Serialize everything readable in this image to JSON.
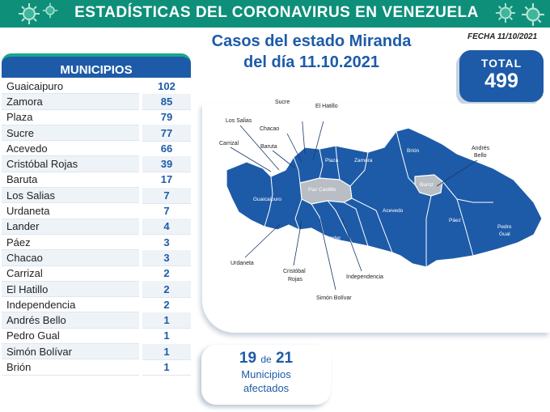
{
  "header": {
    "title": "ESTADÍSTICAS DEL CORONAVIRUS EN VENEZUELA"
  },
  "subtitle": {
    "line1": "Casos del estado Miranda",
    "line2": "del día 11.10.2021"
  },
  "fecha": "FECHA 11/10/2021",
  "total": {
    "label": "TOTAL",
    "value": "499"
  },
  "municipios": {
    "header": "MUNICIPIOS",
    "rows": [
      {
        "name": "Guaicaipuro",
        "value": "102"
      },
      {
        "name": "Zamora",
        "value": "85"
      },
      {
        "name": "Plaza",
        "value": "79"
      },
      {
        "name": "Sucre",
        "value": "77"
      },
      {
        "name": "Acevedo",
        "value": "66"
      },
      {
        "name": "Cristóbal Rojas",
        "value": "39"
      },
      {
        "name": "Baruta",
        "value": "17"
      },
      {
        "name": "Los Salias",
        "value": "7"
      },
      {
        "name": "Urdaneta",
        "value": "7"
      },
      {
        "name": "Lander",
        "value": "4"
      },
      {
        "name": "Páez",
        "value": "3"
      },
      {
        "name": "Chacao",
        "value": "3"
      },
      {
        "name": "Carrizal",
        "value": "2"
      },
      {
        "name": "El Hatillo",
        "value": "2"
      },
      {
        "name": "Independencia",
        "value": "2"
      },
      {
        "name": "Andrés Bello",
        "value": "1"
      },
      {
        "name": "Pedro Gual",
        "value": "1"
      },
      {
        "name": "Simón Bolívar",
        "value": "1"
      },
      {
        "name": "Brión",
        "value": "1"
      }
    ]
  },
  "map": {
    "labels": {
      "sucre": "Sucre",
      "el_hatillo": "El Hatillo",
      "los_salias": "Los Salias",
      "chacao": "Chacao",
      "carrizal": "Carrizal",
      "baruta": "Baruta",
      "plaza": "Plaza",
      "zamora": "Zamora",
      "brion": "Brión",
      "andres_bello_1": "Andrés",
      "andres_bello_2": "Bello",
      "buroz": "Buroz",
      "paz_castillo": "Paz Castillo",
      "guaicaipuro": "Guaicaipuro",
      "acevedo": "Acevedo",
      "paez": "Páez",
      "pedro_gual_1": "Pedro",
      "pedro_gual_2": "Gual",
      "lander": "Lander",
      "urdaneta": "Urdaneta",
      "cristobal_rojas_1": "Cristóbal",
      "cristobal_rojas_2": "Rojas",
      "independencia": "Independencia",
      "simon_bolivar": "Simón Bolívar"
    },
    "colors": {
      "affected": "#1d5ba8",
      "unaffected": "#b9bec4"
    }
  },
  "affected": {
    "count": "19",
    "connector": "de",
    "total": "21",
    "line1": "Municipios",
    "line2": "afectados"
  },
  "colors": {
    "banner": "#0e8f7a",
    "brand_blue": "#1d5ba8",
    "accent_green": "#19a88e"
  }
}
